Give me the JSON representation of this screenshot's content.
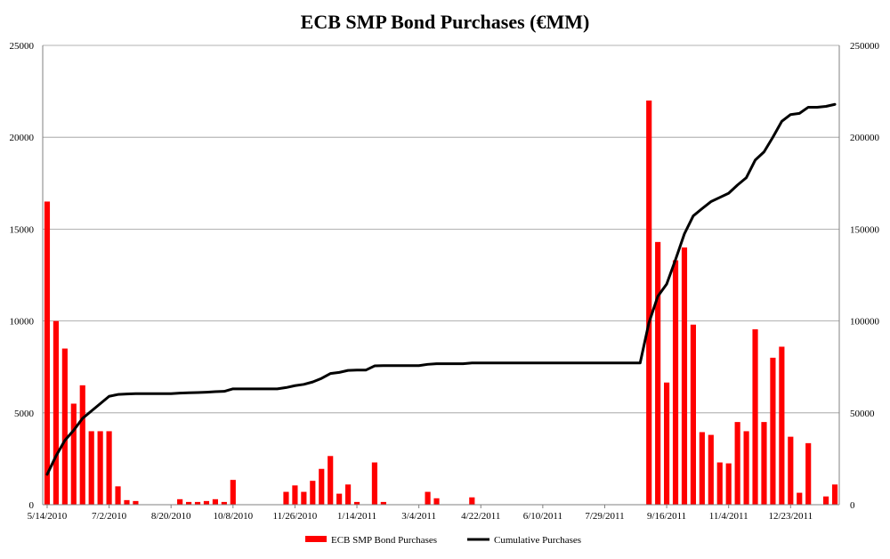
{
  "chart_data": {
    "type": "bar",
    "title": "ECB SMP Bond Purchases (€MM)",
    "x_tick_labels": [
      "5/14/2010",
      "7/2/2010",
      "8/20/2010",
      "10/8/2010",
      "11/26/2010",
      "1/14/2011",
      "3/4/2011",
      "4/22/2011",
      "6/10/2011",
      "7/29/2011",
      "9/16/2011",
      "11/4/2011",
      "12/23/2011"
    ],
    "y_left": {
      "min": 0,
      "max": 25000,
      "ticks": [
        "0",
        "5000",
        "10000",
        "15000",
        "20000",
        "25000"
      ]
    },
    "y_right": {
      "min": 0,
      "max": 250000,
      "ticks": [
        "0",
        "50000",
        "100000",
        "150000",
        "200000",
        "250000"
      ]
    },
    "n_weeks": 90,
    "series": [
      {
        "name": "ECB SMP Bond Purchases",
        "axis": "left",
        "type": "bar",
        "color": "#ff0000",
        "values": [
          16500,
          10000,
          8500,
          5500,
          6500,
          4000,
          4000,
          4000,
          1000,
          250,
          200,
          0,
          0,
          0,
          0,
          300,
          150,
          150,
          200,
          300,
          150,
          1350,
          0,
          0,
          0,
          0,
          0,
          700,
          1050,
          700,
          1300,
          1950,
          2650,
          600,
          1100,
          150,
          0,
          2300,
          150,
          0,
          0,
          0,
          0,
          700,
          350,
          0,
          0,
          0,
          400,
          0,
          0,
          0,
          0,
          0,
          0,
          0,
          0,
          0,
          0,
          0,
          0,
          0,
          0,
          0,
          0,
          0,
          0,
          0,
          22000,
          14300,
          6650,
          13300,
          14000,
          9800,
          3950,
          3800,
          2300,
          2250,
          4500,
          4000,
          9550,
          4500,
          8000,
          8600,
          3700,
          650,
          3350,
          0,
          450,
          1100
        ]
      },
      {
        "name": "Cumulative Purchases",
        "axis": "right",
        "type": "line",
        "color": "#000000",
        "values": [
          16500,
          26500,
          35000,
          40500,
          47000,
          51000,
          55000,
          59000,
          60000,
          60250,
          60450,
          60450,
          60450,
          60450,
          60450,
          60750,
          60900,
          61050,
          61250,
          61550,
          61700,
          63050,
          63050,
          63050,
          63050,
          63050,
          63050,
          63750,
          64800,
          65500,
          66800,
          68750,
          71400,
          72000,
          73100,
          73250,
          73250,
          75550,
          75700,
          75700,
          75700,
          75700,
          75700,
          76400,
          76750,
          76750,
          76750,
          76750,
          77150,
          77150,
          77150,
          77150,
          77150,
          77150,
          77150,
          77150,
          77150,
          77150,
          77150,
          77150,
          77150,
          77150,
          77150,
          77150,
          77150,
          77150,
          77150,
          77150,
          99150,
          113450,
          120100,
          133400,
          147400,
          157200,
          161150,
          164950,
          167250,
          169500,
          174000,
          178000,
          187550,
          192050,
          200050,
          208650,
          212350,
          213000,
          216350,
          216350,
          216800,
          217900
        ]
      }
    ],
    "legend": {
      "position": "bottom",
      "entries": [
        "ECB SMP Bond Purchases",
        "Cumulative Purchases"
      ]
    }
  }
}
